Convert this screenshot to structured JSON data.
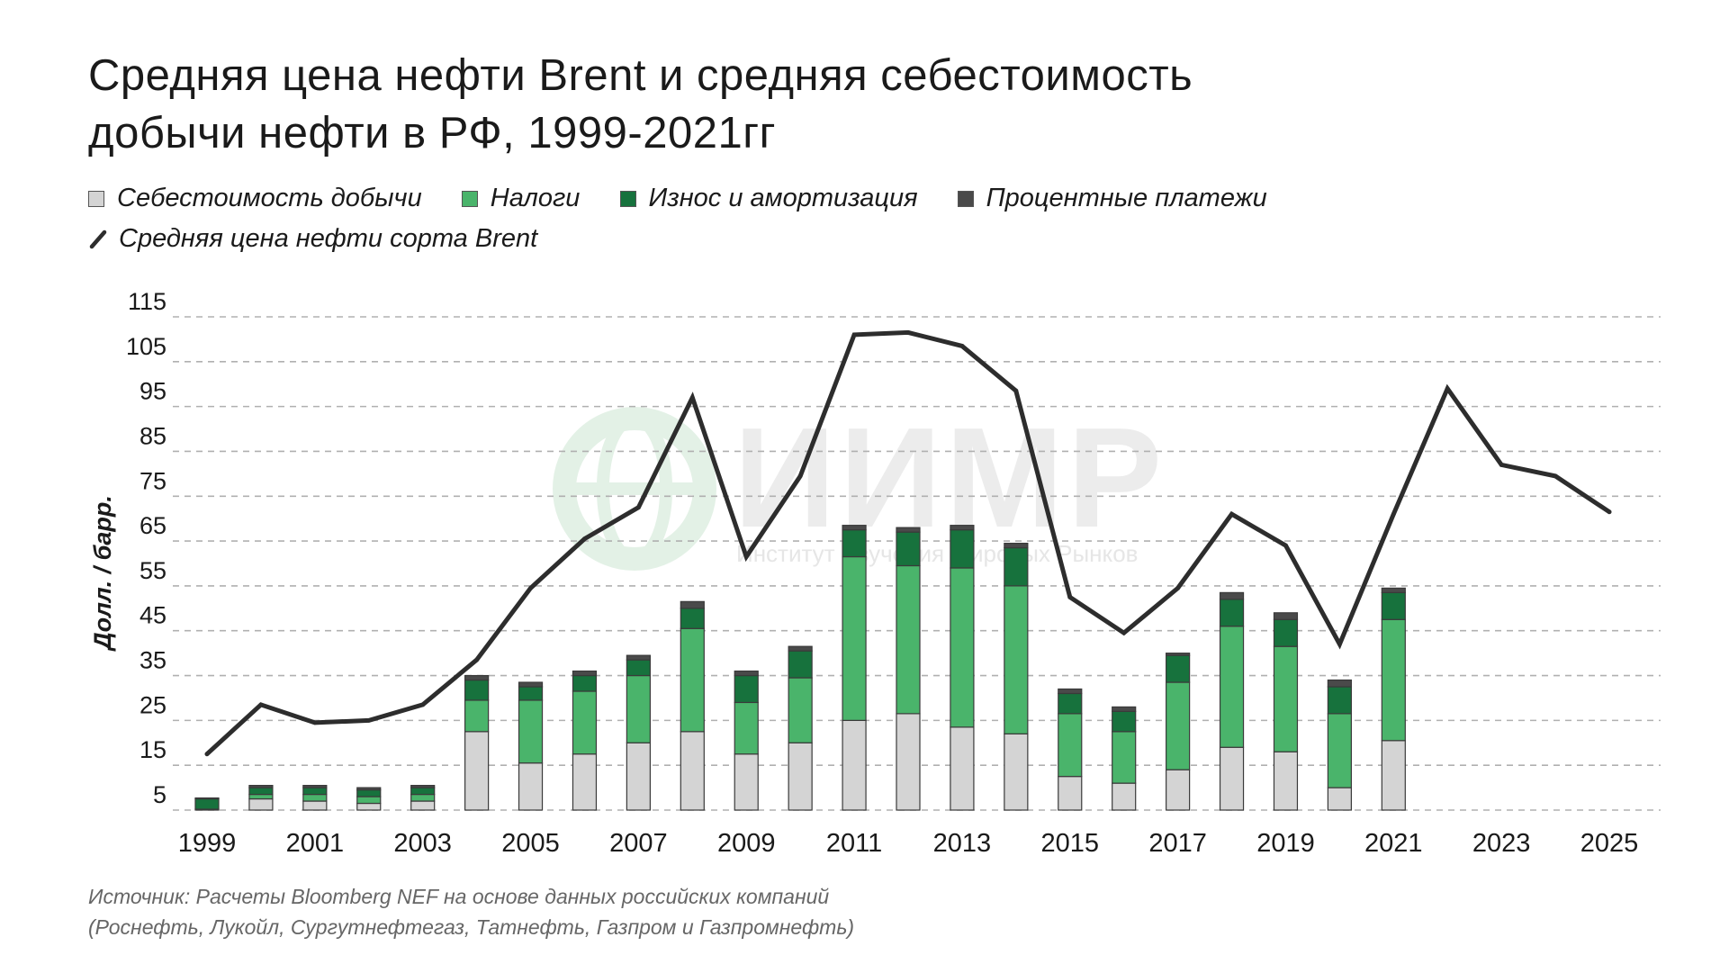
{
  "title": {
    "line1": "Средняя цена нефти Brent и средняя себестоимость",
    "line2": "добычи нефти в РФ, 1999-2021гг"
  },
  "legend": {
    "cost": "Себестоимость добычи",
    "taxes": "Налоги",
    "depreciation": "Износ и амортизация",
    "interest": "Процентные платежи",
    "brent": "Средняя цена нефти сорта Brent"
  },
  "colors": {
    "cost": "#d4d4d4",
    "taxes": "#4ab46b",
    "depreciation": "#17723d",
    "interest": "#4a4a4a",
    "brent": "#2d2d2d",
    "grid": "#b0b0b0"
  },
  "watermark": {
    "text": "ИИМР",
    "subtitle": "Институт Изучения Мировых Рынков"
  },
  "source": {
    "line1": "Источник: Расчеты Bloomberg NEF на основе данных российских компаний",
    "line2": "(Роснефть, Лукойл, Сургутнефтегаз, Татнефть, Газпром и Газпромнефть)"
  },
  "chart_data": {
    "type": "bar",
    "ylabel": "Долл. / барр.",
    "ylim": [
      5,
      115
    ],
    "y_ticks": [
      5,
      15,
      25,
      35,
      45,
      55,
      65,
      75,
      85,
      95,
      105,
      115
    ],
    "x_range": [
      1999,
      2025
    ],
    "x_ticks": [
      1999,
      2001,
      2003,
      2005,
      2007,
      2009,
      2011,
      2013,
      2015,
      2017,
      2019,
      2021,
      2023,
      2025
    ],
    "grid": true,
    "bars": {
      "years": [
        1999,
        2000,
        2001,
        2002,
        2003,
        2004,
        2005,
        2006,
        2007,
        2008,
        2009,
        2010,
        2011,
        2012,
        2013,
        2014,
        2015,
        2016,
        2017,
        2018,
        2019,
        2020,
        2021
      ],
      "series": [
        {
          "name": "Себестоимость добычи",
          "key": "cost",
          "values": [
            0,
            2.5,
            2,
            1.5,
            2,
            17.5,
            10.5,
            12.5,
            15,
            17.5,
            12.5,
            15,
            20,
            21.5,
            18.5,
            17,
            7.5,
            6,
            9,
            14,
            13,
            5,
            15.5
          ]
        },
        {
          "name": "Налоги",
          "key": "taxes",
          "values": [
            0.2,
            1,
            1.5,
            1.5,
            1.5,
            7,
            14,
            14,
            15,
            23,
            11.5,
            14.5,
            36.5,
            33,
            35.5,
            33,
            14,
            11.5,
            19.5,
            27,
            23.5,
            16.5,
            27
          ]
        },
        {
          "name": "Износ и амортизация",
          "key": "depreciation",
          "values": [
            2.3,
            1.5,
            1.5,
            1.5,
            1.5,
            4.5,
            3,
            3.5,
            3.5,
            4.5,
            6,
            6,
            6,
            7.5,
            8.5,
            8.5,
            4.5,
            4.5,
            6,
            6,
            6,
            6,
            6
          ]
        },
        {
          "name": "Процентные платежи",
          "key": "interest",
          "values": [
            0.2,
            0.5,
            0.5,
            0.5,
            0.5,
            1,
            1,
            1,
            1,
            1.5,
            1,
            1,
            1,
            1,
            1,
            1,
            1,
            1,
            0.5,
            1.5,
            1.5,
            1.5,
            1
          ]
        }
      ]
    },
    "line": {
      "name": "Средняя цена нефти сорта Brent",
      "years": [
        1999,
        2000,
        2001,
        2002,
        2003,
        2004,
        2005,
        2006,
        2007,
        2008,
        2009,
        2010,
        2011,
        2012,
        2013,
        2014,
        2015,
        2016,
        2017,
        2018,
        2019,
        2020,
        2021,
        2022,
        2023,
        2024,
        2025
      ],
      "values": [
        17.5,
        28.5,
        24.5,
        25,
        28.5,
        38.5,
        54.5,
        65.5,
        72.5,
        97,
        61.5,
        79.5,
        111,
        111.5,
        108.5,
        98.5,
        52.5,
        44.5,
        54.5,
        71,
        64,
        42,
        71,
        99,
        82,
        79.5,
        71.5
      ]
    }
  }
}
